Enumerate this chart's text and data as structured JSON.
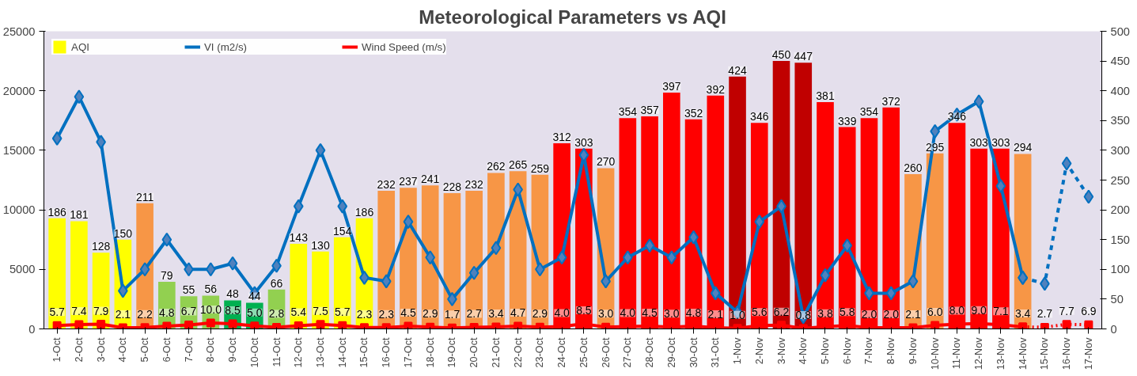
{
  "chart_data": {
    "type": "bar",
    "title": "Meteorological Parameters vs AQI",
    "categories": [
      "1-Oct",
      "2-Oct",
      "3-Oct",
      "4-Oct",
      "5-Oct",
      "6-Oct",
      "7-Oct",
      "8-Oct",
      "9-Oct",
      "10-Oct",
      "11-Oct",
      "12-Oct",
      "13-Oct",
      "14-Oct",
      "15-Oct",
      "16-Oct",
      "17-Oct",
      "18-Oct",
      "19-Oct",
      "20-Oct",
      "21-Oct",
      "22-Oct",
      "23-Oct",
      "24-Oct",
      "25-Oct",
      "26-Oct",
      "27-Oct",
      "28-Oct",
      "29-Oct",
      "30-Oct",
      "31-Oct",
      "1-Nov",
      "2-Nov",
      "3-Nov",
      "4-Nov",
      "5-Nov",
      "6-Nov",
      "7-Nov",
      "8-Nov",
      "9-Nov",
      "10-Nov",
      "11-Nov",
      "12-Nov",
      "13-Nov",
      "14-Nov",
      "15-Nov",
      "16-Nov",
      "17-Nov"
    ],
    "series": [
      {
        "name": "AQI",
        "axis": "y2",
        "colors": [
          "#ffff00",
          "#ffff00",
          "#ffff00",
          "#ffff00",
          "#f79646",
          "#92d050",
          "#92d050",
          "#92d050",
          "#00b050",
          "#00b050",
          "#92d050",
          "#ffff00",
          "#ffff00",
          "#ffff00",
          "#ffff00",
          "#f79646",
          "#f79646",
          "#f79646",
          "#f79646",
          "#f79646",
          "#f79646",
          "#f79646",
          "#f79646",
          "#ff0000",
          "#ff0000",
          "#f79646",
          "#ff0000",
          "#ff0000",
          "#ff0000",
          "#ff0000",
          "#ff0000",
          "#c00000",
          "#ff0000",
          "#c00000",
          "#c00000",
          "#ff0000",
          "#ff0000",
          "#ff0000",
          "#ff0000",
          "#f79646",
          "#f79646",
          "#ff0000",
          "#ff0000",
          "#ff0000",
          "#f79646",
          null,
          null,
          null
        ],
        "values": [
          186,
          181,
          128,
          150,
          211,
          79,
          55,
          56,
          48,
          44,
          66,
          143,
          130,
          154,
          186,
          232,
          237,
          241,
          228,
          232,
          262,
          265,
          259,
          312,
          303,
          270,
          354,
          357,
          397,
          352,
          392,
          424,
          346,
          450,
          447,
          381,
          339,
          354,
          372,
          260,
          295,
          346,
          303,
          303,
          294,
          null,
          null,
          null
        ],
        "value_labels": [
          "186",
          "181",
          "128",
          "150",
          "211",
          "79",
          "55",
          "56",
          "48",
          "44",
          "66",
          "143",
          "130",
          "154",
          "186",
          "232",
          "237",
          "241",
          "228",
          "232",
          "262",
          "265",
          "259",
          "312",
          "303",
          "270",
          "354",
          "357",
          "397",
          "352",
          "392",
          "424",
          "346",
          "450",
          "447",
          "381",
          "339",
          "354",
          "372",
          "260",
          "295",
          "346",
          "303",
          "303",
          "294",
          null,
          null,
          null
        ]
      },
      {
        "type": "line",
        "name": "VI (m2/s)",
        "color": "#0070c0",
        "marker": "diamond",
        "line_style": "solid",
        "values": [
          16000,
          19500,
          15700,
          3200,
          5000,
          7500,
          5000,
          5000,
          5500,
          3000,
          5300,
          10300,
          15000,
          10300,
          4300,
          4000,
          9000,
          6000,
          2500,
          4700,
          6800,
          11700,
          5000,
          6000,
          14600,
          4000,
          6000,
          7000,
          6000,
          7700,
          3000,
          1400,
          9000,
          10300,
          1000,
          4500,
          7000,
          3000,
          3000,
          4000,
          16600,
          18000,
          19100,
          12000,
          4300,
          null,
          null,
          null
        ]
      },
      {
        "type": "line",
        "color": "#0070c0",
        "marker": "diamond",
        "line_style": "dashed",
        "values": [
          null,
          null,
          null,
          null,
          null,
          null,
          null,
          null,
          null,
          null,
          null,
          null,
          null,
          null,
          null,
          null,
          null,
          null,
          null,
          null,
          null,
          null,
          null,
          null,
          null,
          null,
          null,
          null,
          null,
          null,
          null,
          null,
          null,
          null,
          null,
          null,
          null,
          null,
          null,
          null,
          null,
          null,
          null,
          null,
          4300,
          3800,
          13900,
          11100
        ]
      },
      {
        "type": "line",
        "name": "Wind Speed (m/s)",
        "axis": "y2",
        "color": "#ff0000",
        "marker": "square",
        "line_style": "solid",
        "values": [
          5.7,
          7.4,
          7.9,
          2.1,
          2.2,
          4.8,
          6.7,
          10.0,
          8.5,
          5.0,
          2.8,
          5.4,
          7.5,
          5.7,
          2.3,
          2.3,
          4.5,
          2.9,
          1.7,
          2.7,
          3.4,
          4.7,
          2.9,
          4.0,
          8.5,
          3.0,
          4.0,
          4.5,
          3.0,
          4.8,
          2.1,
          1.0,
          5.6,
          6.2,
          0.8,
          3.8,
          5.8,
          2.0,
          2.0,
          2.1,
          6.0,
          8.0,
          9.0,
          7.1,
          3.4,
          null,
          null,
          null
        ],
        "value_labels": [
          "5.7",
          "7.4",
          "7.9",
          "2.1",
          "2.2",
          "4.8",
          "6.7",
          "10.0",
          "8.5",
          "5.0",
          "2.8",
          "5.4",
          "7.5",
          "5.7",
          "2.3",
          "2.3",
          "4.5",
          "2.9",
          "1.7",
          "2.7",
          "3.4",
          "4.7",
          "2.9",
          "4.0",
          "8.5",
          "3.0",
          "4.0",
          "4.5",
          "3.0",
          "4.8",
          "2.1",
          "1.0",
          "5.6",
          "6.2",
          "0.8",
          "3.8",
          "5.8",
          "2.0",
          "2.0",
          "2.1",
          "6.0",
          "8.0",
          "9.0",
          "7.1",
          "3.4",
          null,
          null,
          null
        ]
      },
      {
        "type": "line",
        "axis": "y2",
        "color": "#ff0000",
        "marker": "square",
        "line_style": "dotted",
        "values": [
          null,
          null,
          null,
          null,
          null,
          null,
          null,
          null,
          null,
          null,
          null,
          null,
          null,
          null,
          null,
          null,
          null,
          null,
          null,
          null,
          null,
          null,
          null,
          null,
          null,
          null,
          null,
          null,
          null,
          null,
          null,
          null,
          null,
          null,
          null,
          null,
          null,
          null,
          null,
          null,
          null,
          null,
          null,
          null,
          3.4,
          2.7,
          7.7,
          6.9
        ],
        "value_labels": [
          null,
          null,
          null,
          null,
          null,
          null,
          null,
          null,
          null,
          null,
          null,
          null,
          null,
          null,
          null,
          null,
          null,
          null,
          null,
          null,
          null,
          null,
          null,
          null,
          null,
          null,
          null,
          null,
          null,
          null,
          null,
          null,
          null,
          null,
          null,
          null,
          null,
          null,
          null,
          null,
          null,
          null,
          null,
          null,
          null,
          "2.7",
          "7.7",
          "6.9"
        ]
      }
    ],
    "ylim": [
      0,
      25000
    ],
    "yticks": [
      0,
      5000,
      10000,
      15000,
      20000,
      25000
    ],
    "y2lim": [
      0,
      500
    ],
    "y2ticks": [
      0,
      50,
      100,
      150,
      200,
      250,
      300,
      350,
      400,
      450,
      500
    ],
    "grid": false,
    "legend": "top"
  }
}
